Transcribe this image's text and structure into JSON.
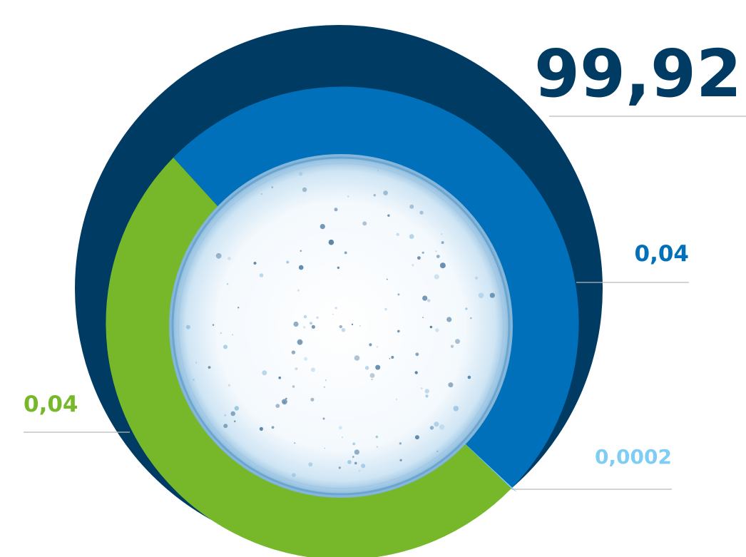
{
  "chart_data": {
    "type": "pie",
    "series": [
      {
        "label": "99,92",
        "value": 99.92,
        "color": "#003b63"
      },
      {
        "label": "0,04",
        "value": 0.04,
        "color": "#0070bb"
      },
      {
        "label": "0,0002",
        "value": 0.0002,
        "color": "#7fcdf4"
      },
      {
        "label": "0,04",
        "value": 0.04,
        "color": "#76b82a"
      }
    ],
    "center_image": "water-splash",
    "leader_line_color": "#b9b9b9"
  }
}
